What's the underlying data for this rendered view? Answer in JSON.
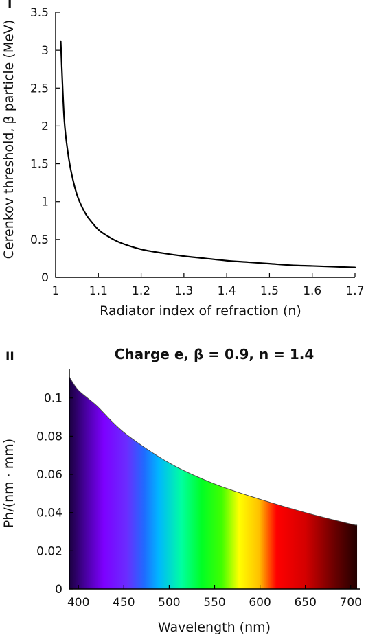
{
  "chart_data": [
    {
      "type": "line",
      "panel_label": "I",
      "title": "",
      "xlabel": "Radiator index of refraction (n)",
      "ylabel": "Cerenkov threshold, β particle (MeV)",
      "xlim": [
        1,
        1.7
      ],
      "ylim": [
        0,
        3.5
      ],
      "x_ticks": [
        "1",
        "1.1",
        "1.2",
        "1.3",
        "1.4",
        "1.5",
        "1.6",
        "1.7"
      ],
      "y_ticks": [
        "0",
        "0.5",
        "1",
        "1.5",
        "2",
        "2.5",
        "3",
        "3.5"
      ],
      "grid": false,
      "series": [
        {
          "color": "#000000",
          "x": [
            1.012,
            1.02,
            1.03,
            1.04,
            1.05,
            1.06,
            1.07,
            1.08,
            1.1,
            1.12,
            1.15,
            1.2,
            1.25,
            1.3,
            1.35,
            1.4,
            1.45,
            1.5,
            1.55,
            1.6,
            1.65,
            1.7
          ],
          "y": [
            3.12,
            2.1,
            1.6,
            1.3,
            1.09,
            0.95,
            0.84,
            0.76,
            0.63,
            0.55,
            0.46,
            0.37,
            0.32,
            0.28,
            0.25,
            0.22,
            0.2,
            0.18,
            0.16,
            0.15,
            0.14,
            0.13
          ]
        }
      ]
    },
    {
      "type": "area",
      "panel_label": "II",
      "title": "Charge e, β = 0.9, n = 1.4",
      "xlabel": "Wavelength (nm)",
      "ylabel": "Ph/(nm · mm)",
      "xlim": [
        390,
        710
      ],
      "ylim": [
        0,
        0.115
      ],
      "x_ticks": [
        "400",
        "450",
        "500",
        "550",
        "600",
        "650",
        "700"
      ],
      "y_ticks": [
        "0",
        "0.02",
        "0.04",
        "0.06",
        "0.08",
        "0.1"
      ],
      "grid": false,
      "fill": "visible spectrum colors by wavelength",
      "series": [
        {
          "x": [
            390,
            400,
            420,
            450,
            500,
            550,
            600,
            650,
            700,
            707
          ],
          "y": [
            0.111,
            0.104,
            0.096,
            0.082,
            0.066,
            0.055,
            0.047,
            0.04,
            0.034,
            0.0335
          ]
        }
      ]
    }
  ]
}
